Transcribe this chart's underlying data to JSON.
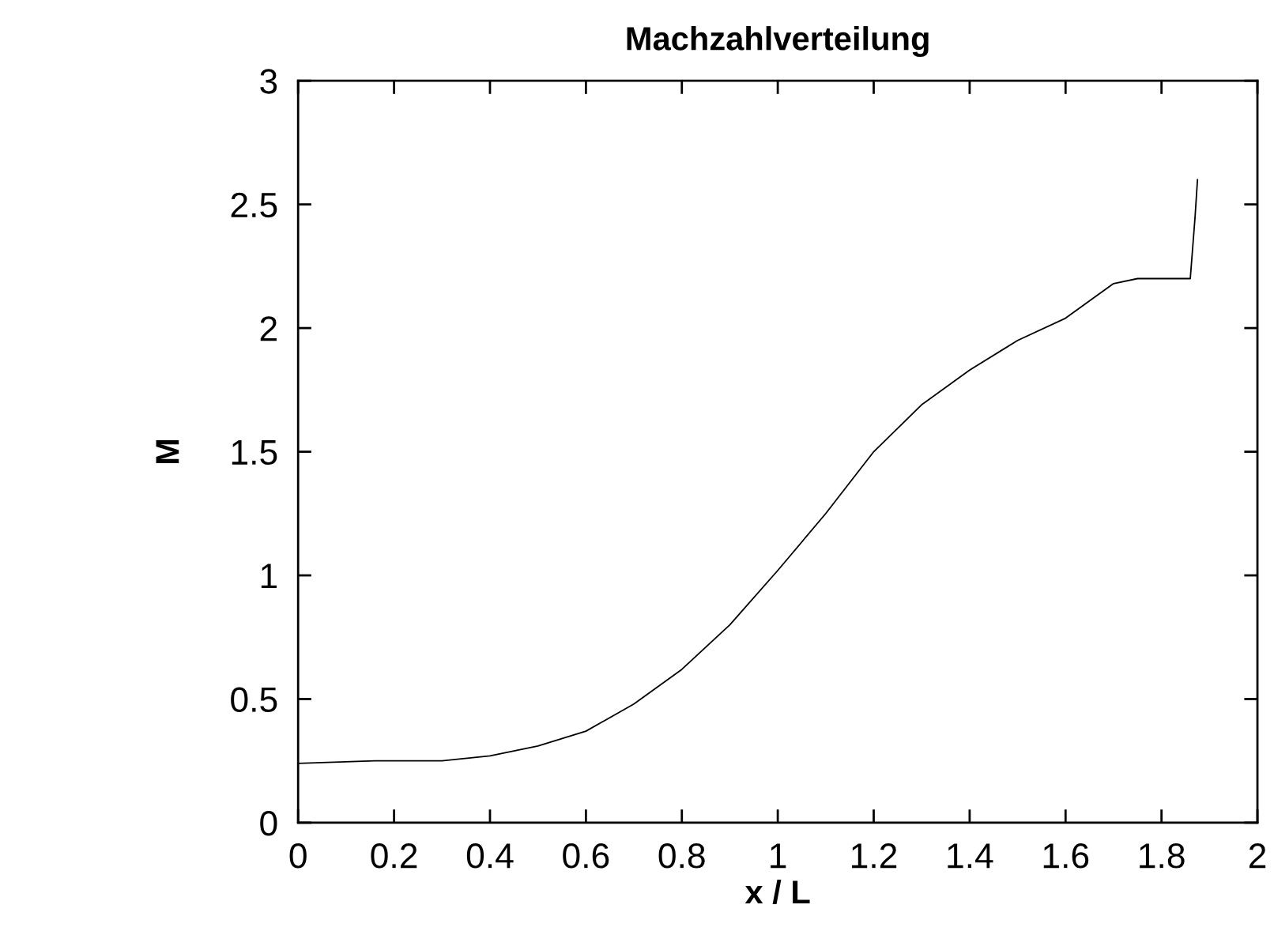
{
  "chart_data": {
    "type": "line",
    "title": "Machzahlverteilung",
    "xlabel": "x / L",
    "ylabel": "M",
    "series": [
      {
        "color": "#000000",
        "x": [
          0,
          0.16,
          0.3,
          0.4,
          0.5,
          0.6,
          0.7,
          0.8,
          0.9,
          1.0,
          1.1,
          1.2,
          1.3,
          1.4,
          1.5,
          1.6,
          1.7,
          1.75,
          1.86,
          1.87,
          1.875
        ],
        "values": [
          0.24,
          0.25,
          0.25,
          0.27,
          0.31,
          0.37,
          0.48,
          0.62,
          0.8,
          1.02,
          1.25,
          1.5,
          1.69,
          1.83,
          1.95,
          2.04,
          2.18,
          2.2,
          2.2,
          2.45,
          2.6
        ]
      }
    ],
    "xlim": [
      0,
      2
    ],
    "xticks": [
      0,
      0.2,
      0.4,
      0.6,
      0.8,
      1,
      1.2,
      1.4,
      1.6,
      1.8,
      2
    ],
    "ylim": [
      0,
      3
    ],
    "yticks": [
      0,
      0.5,
      1,
      1.5,
      2,
      2.5,
      3
    ],
    "grid": false,
    "legend": false,
    "marker": "none",
    "line_style": "solid"
  }
}
